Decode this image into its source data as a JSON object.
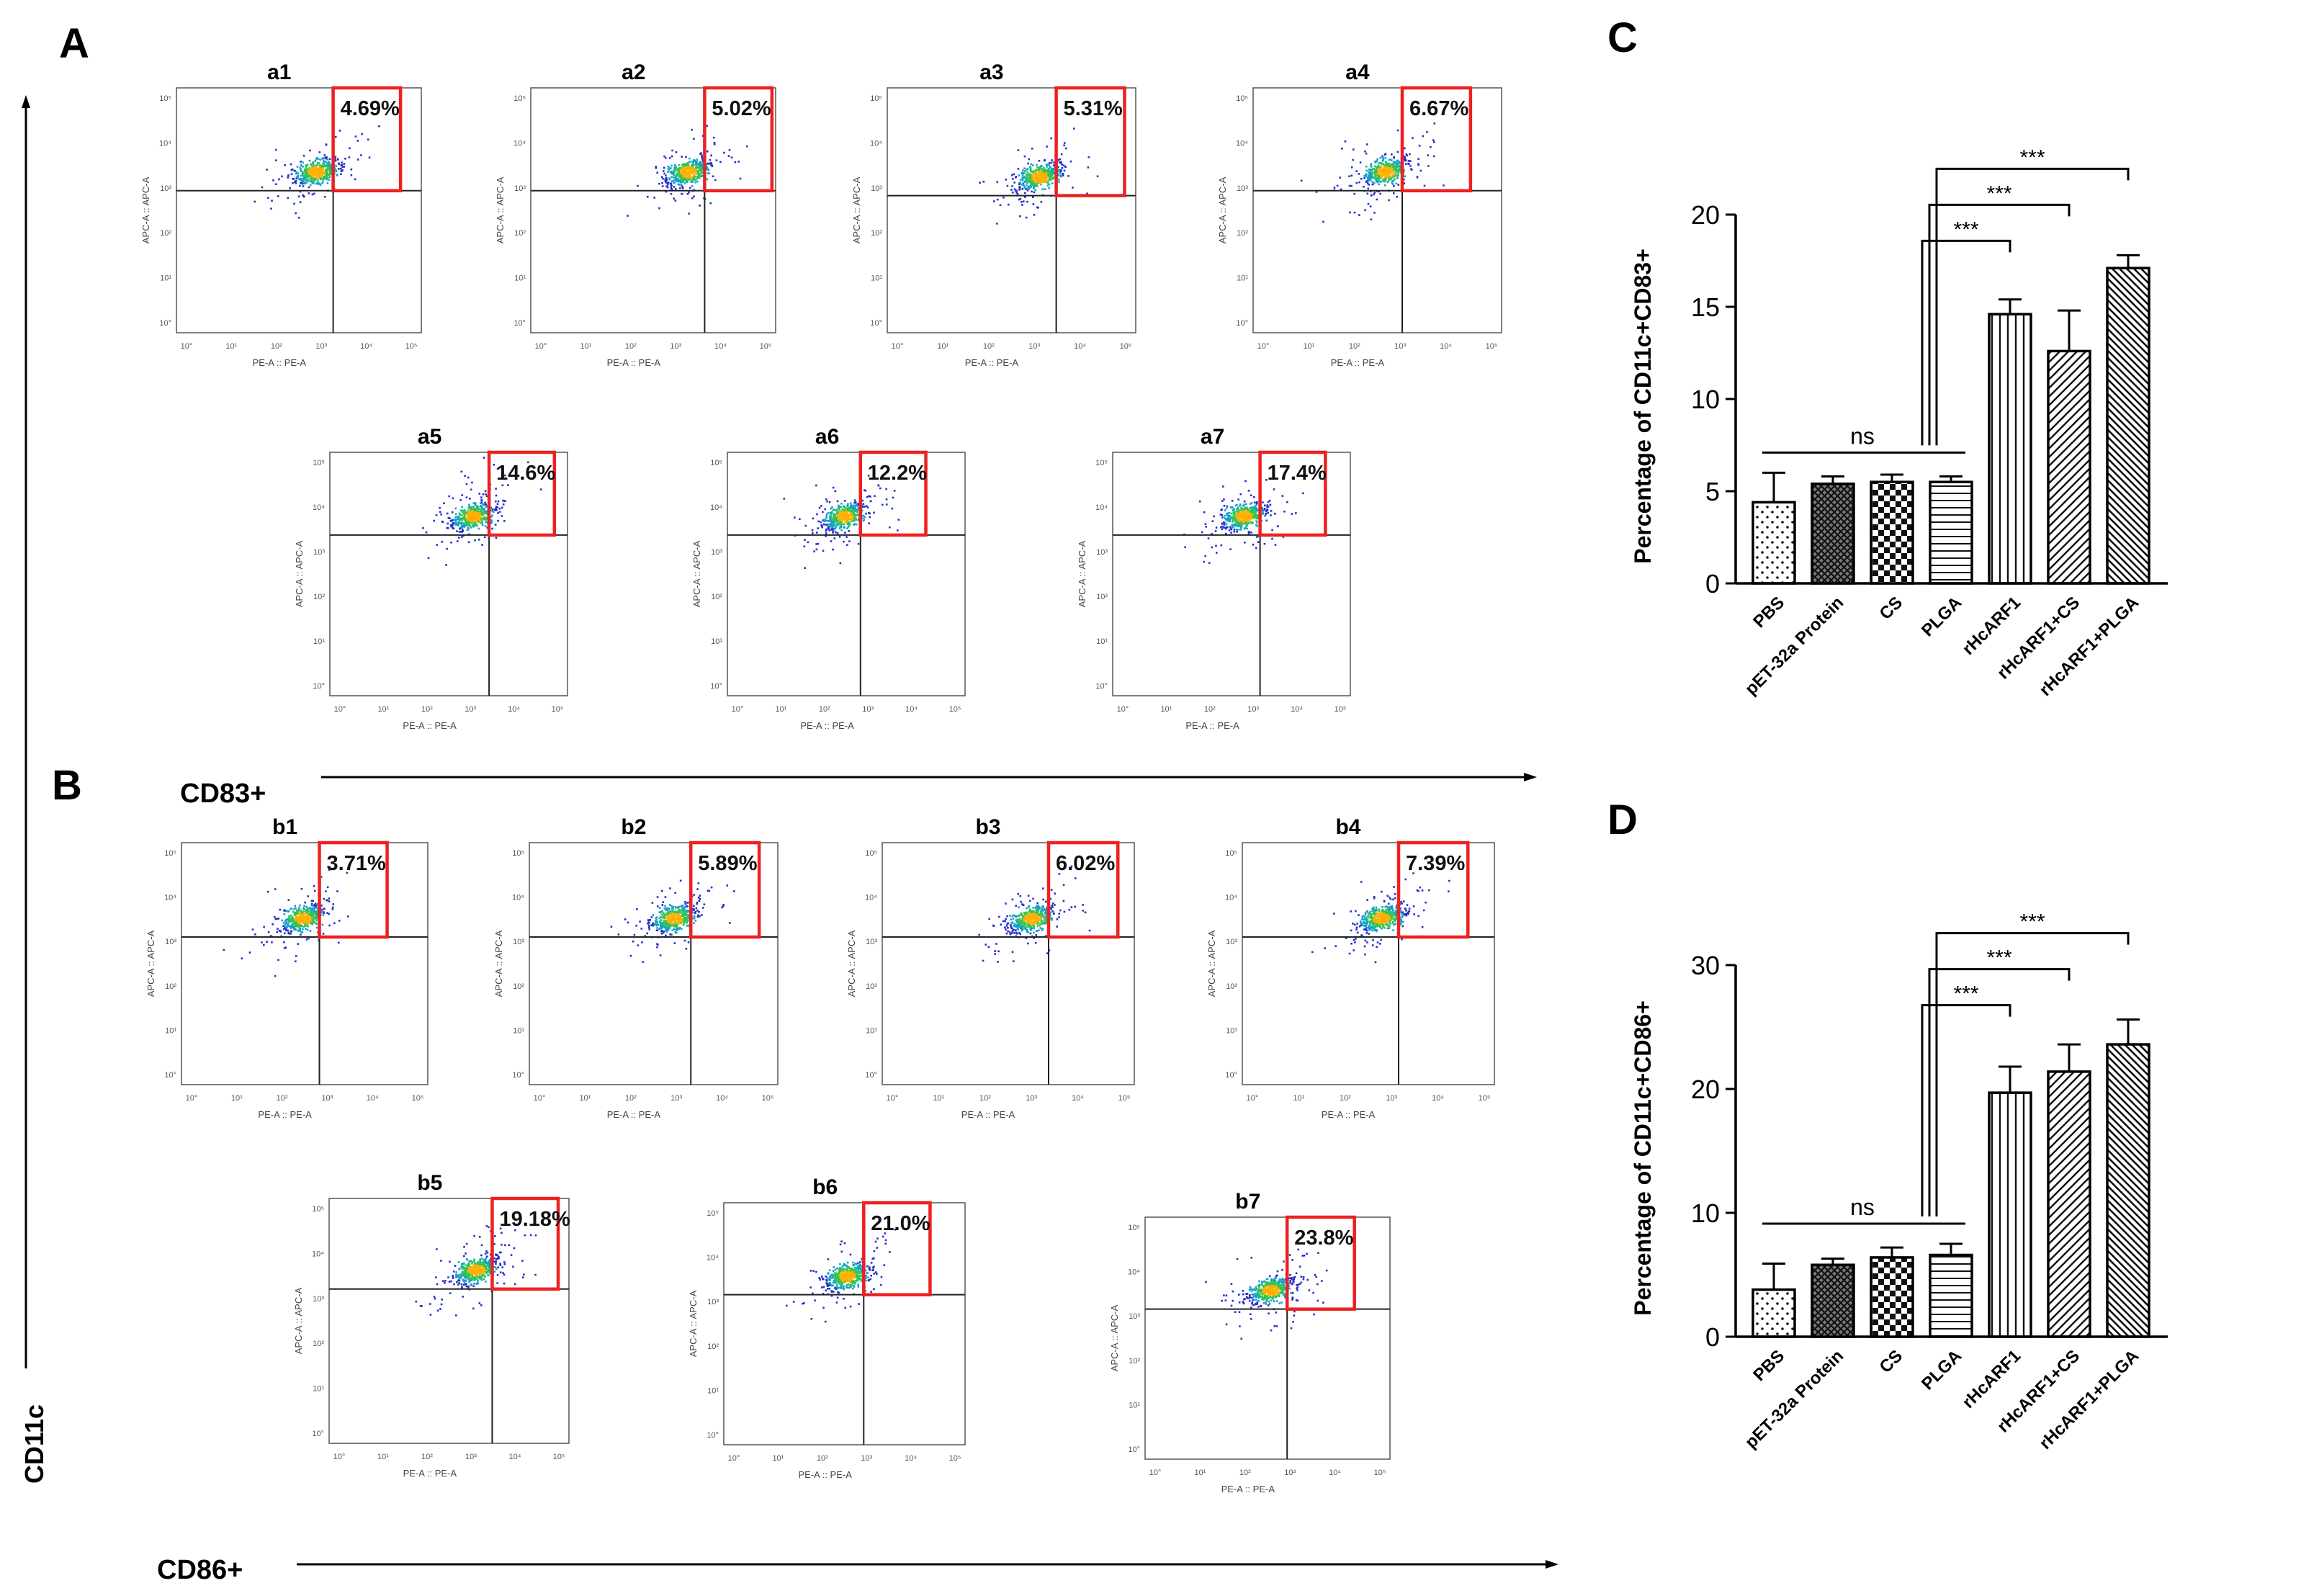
{
  "panel_labels": {
    "A": "A",
    "B": "B",
    "C": "C",
    "D": "D"
  },
  "axis_titles": {
    "cd11c": "CD11c",
    "cd83": "CD83+",
    "cd86": "CD86+"
  },
  "flow": {
    "x_axis_label": "PE-A :: PE-A",
    "y_axis_label": "APC-A :: APC-A",
    "log_ticks": [
      "10°",
      "10¹",
      "10²",
      "10³",
      "10⁴",
      "10⁵"
    ],
    "plots": [
      {
        "label": "a1",
        "percent": "4.69%"
      },
      {
        "label": "a2",
        "percent": "5.02%"
      },
      {
        "label": "a3",
        "percent": "5.31%"
      },
      {
        "label": "a4",
        "percent": "6.67%"
      },
      {
        "label": "a5",
        "percent": "14.6%"
      },
      {
        "label": "a6",
        "percent": "12.2%"
      },
      {
        "label": "a7",
        "percent": "17.4%"
      },
      {
        "label": "b1",
        "percent": "3.71%"
      },
      {
        "label": "b2",
        "percent": "5.89%"
      },
      {
        "label": "b3",
        "percent": "6.02%"
      },
      {
        "label": "b4",
        "percent": "7.39%"
      },
      {
        "label": "b5",
        "percent": "19.18%"
      },
      {
        "label": "b6",
        "percent": "21.0%"
      },
      {
        "label": "b7",
        "percent": "23.8%"
      }
    ]
  },
  "chart_data": [
    {
      "type": "bar",
      "panel": "C",
      "ylabel": "Percentage of CD11c+CD83+",
      "xlabel": "",
      "categories": [
        "PBS",
        "pET-32a Protein",
        "CS",
        "PLGA",
        "rHcARF1",
        "rHcARF1+CS",
        "rHcARF1+PLGA"
      ],
      "values": [
        4.4,
        5.4,
        5.5,
        5.5,
        14.6,
        12.6,
        17.1
      ],
      "errors": [
        1.6,
        0.4,
        0.4,
        0.3,
        0.8,
        2.2,
        0.7
      ],
      "patterns": [
        "dots",
        "crosshatch",
        "checker",
        "hlines",
        "vlines",
        "diag",
        "diag-dense"
      ],
      "ylim": [
        0,
        20
      ],
      "yticks": [
        "0",
        "5",
        "10",
        "15",
        "20"
      ],
      "ns_label": "ns",
      "sig_label": "***"
    },
    {
      "type": "bar",
      "panel": "D",
      "ylabel": "Percentage of CD11c+CD86+",
      "xlabel": "",
      "categories": [
        "PBS",
        "pET-32a Protein",
        "CS",
        "PLGA",
        "rHcARF1",
        "rHcARF1+CS",
        "rHcARF1+PLGA"
      ],
      "values": [
        3.8,
        5.8,
        6.4,
        6.6,
        19.7,
        21.4,
        23.6
      ],
      "errors": [
        2.1,
        0.5,
        0.8,
        0.9,
        2.1,
        2.2,
        2.0
      ],
      "patterns": [
        "dots",
        "crosshatch",
        "checker",
        "hlines",
        "vlines",
        "diag",
        "diag-dense"
      ],
      "ylim": [
        0,
        30
      ],
      "yticks": [
        "0",
        "10",
        "20",
        "30"
      ],
      "ns_label": "ns",
      "sig_label": "***"
    }
  ]
}
